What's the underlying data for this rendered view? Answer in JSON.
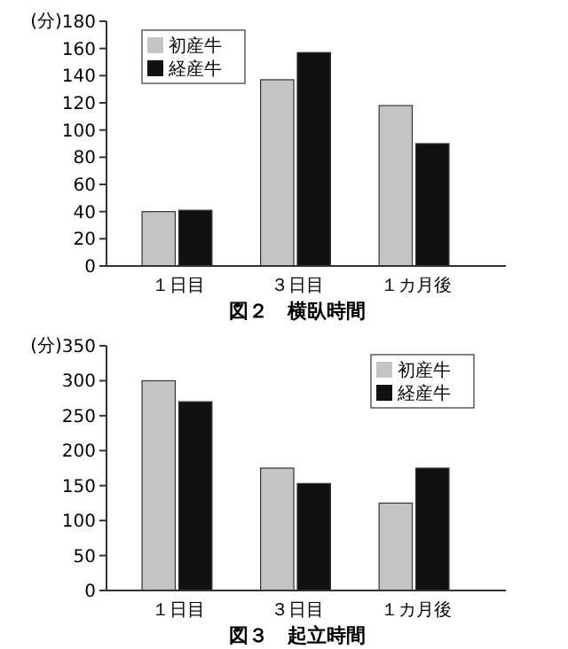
{
  "chart_data": [
    {
      "type": "bar",
      "title": "図２　横臥時間",
      "ylabel": "(分)",
      "categories": [
        "１日目",
        "３日目",
        "１カ月後"
      ],
      "series": [
        {
          "name": "初産牛",
          "color": "#c4c4c4",
          "values": [
            40,
            137,
            118
          ]
        },
        {
          "name": "経産牛",
          "color": "#111111",
          "values": [
            41,
            157,
            90
          ]
        }
      ],
      "ylim": [
        0,
        180
      ],
      "yticks": [
        0,
        20,
        40,
        60,
        80,
        100,
        120,
        140,
        160,
        180
      ],
      "legend": "top left",
      "grid": false
    },
    {
      "type": "bar",
      "title": "図３　起立時間",
      "ylabel": "(分)",
      "categories": [
        "１日目",
        "３日目",
        "１カ月後"
      ],
      "series": [
        {
          "name": "初産牛",
          "color": "#c4c4c4",
          "values": [
            300,
            175,
            125
          ]
        },
        {
          "name": "経産牛",
          "color": "#111111",
          "values": [
            270,
            153,
            175
          ]
        }
      ],
      "ylim": [
        0,
        350
      ],
      "yticks": [
        0,
        50,
        100,
        150,
        200,
        250,
        300,
        350
      ],
      "legend": "top right",
      "grid": false
    }
  ]
}
